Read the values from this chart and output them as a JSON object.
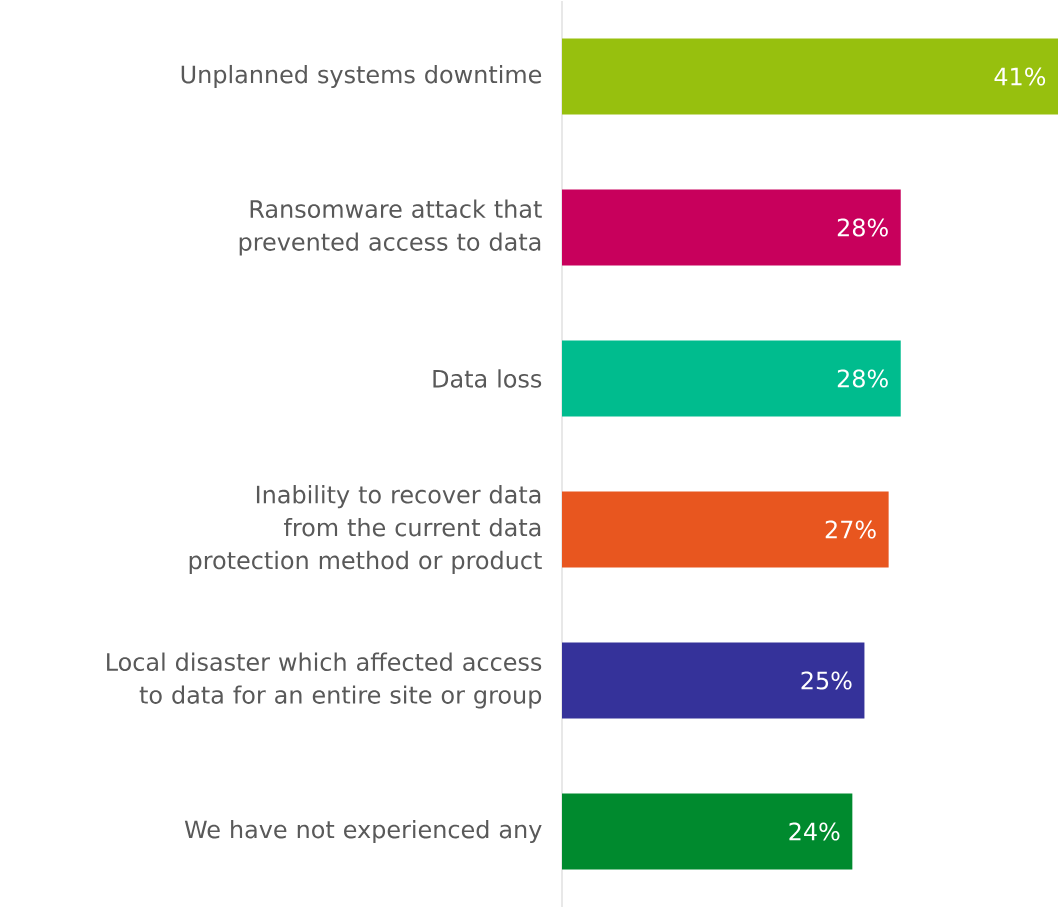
{
  "chart_data": {
    "type": "bar",
    "orientation": "horizontal",
    "data_labels": true,
    "categories": [
      "Unplanned systems downtime",
      "Ransomware attack that prevented access to data",
      "Data loss",
      "Inability to recover data from the current data protection method or product",
      "Local disaster which affected access to data for an entire site or group",
      "We have not experienced any"
    ],
    "values": [
      41,
      28,
      28,
      27,
      25,
      24
    ],
    "value_labels": [
      "41%",
      "28%",
      "28%",
      "27%",
      "25%",
      "24%"
    ],
    "colors": [
      "#97c00e",
      "#c8005c",
      "#00bc8e",
      "#e8561f",
      "#35329a",
      "#008a2e"
    ]
  }
}
